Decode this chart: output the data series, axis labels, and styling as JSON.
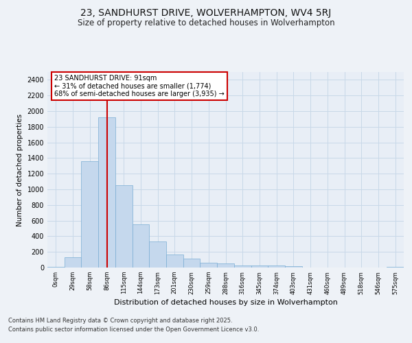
{
  "title_line1": "23, SANDHURST DRIVE, WOLVERHAMPTON, WV4 5RJ",
  "title_line2": "Size of property relative to detached houses in Wolverhampton",
  "xlabel": "Distribution of detached houses by size in Wolverhampton",
  "ylabel": "Number of detached properties",
  "categories": [
    "0sqm",
    "29sqm",
    "58sqm",
    "86sqm",
    "115sqm",
    "144sqm",
    "173sqm",
    "201sqm",
    "230sqm",
    "259sqm",
    "288sqm",
    "316sqm",
    "345sqm",
    "374sqm",
    "403sqm",
    "431sqm",
    "460sqm",
    "489sqm",
    "518sqm",
    "546sqm",
    "575sqm"
  ],
  "values": [
    10,
    130,
    1360,
    1920,
    1055,
    555,
    335,
    170,
    110,
    58,
    55,
    30,
    25,
    22,
    14,
    4,
    0,
    4,
    0,
    0,
    10
  ],
  "bar_color": "#c5d8ed",
  "bar_edge_color": "#7aadd4",
  "grid_color": "#c8d8e8",
  "vline_x": 3,
  "vline_color": "#cc0000",
  "annotation_text": "23 SANDHURST DRIVE: 91sqm\n← 31% of detached houses are smaller (1,774)\n68% of semi-detached houses are larger (3,935) →",
  "annotation_box_color": "#ffffff",
  "annotation_box_edge_color": "#cc0000",
  "ylim": [
    0,
    2500
  ],
  "yticks": [
    0,
    200,
    400,
    600,
    800,
    1000,
    1200,
    1400,
    1600,
    1800,
    2000,
    2200,
    2400
  ],
  "footnote_line1": "Contains HM Land Registry data © Crown copyright and database right 2025.",
  "footnote_line2": "Contains public sector information licensed under the Open Government Licence v3.0.",
  "bg_color": "#eef2f7",
  "plot_bg_color": "#e8eef6"
}
